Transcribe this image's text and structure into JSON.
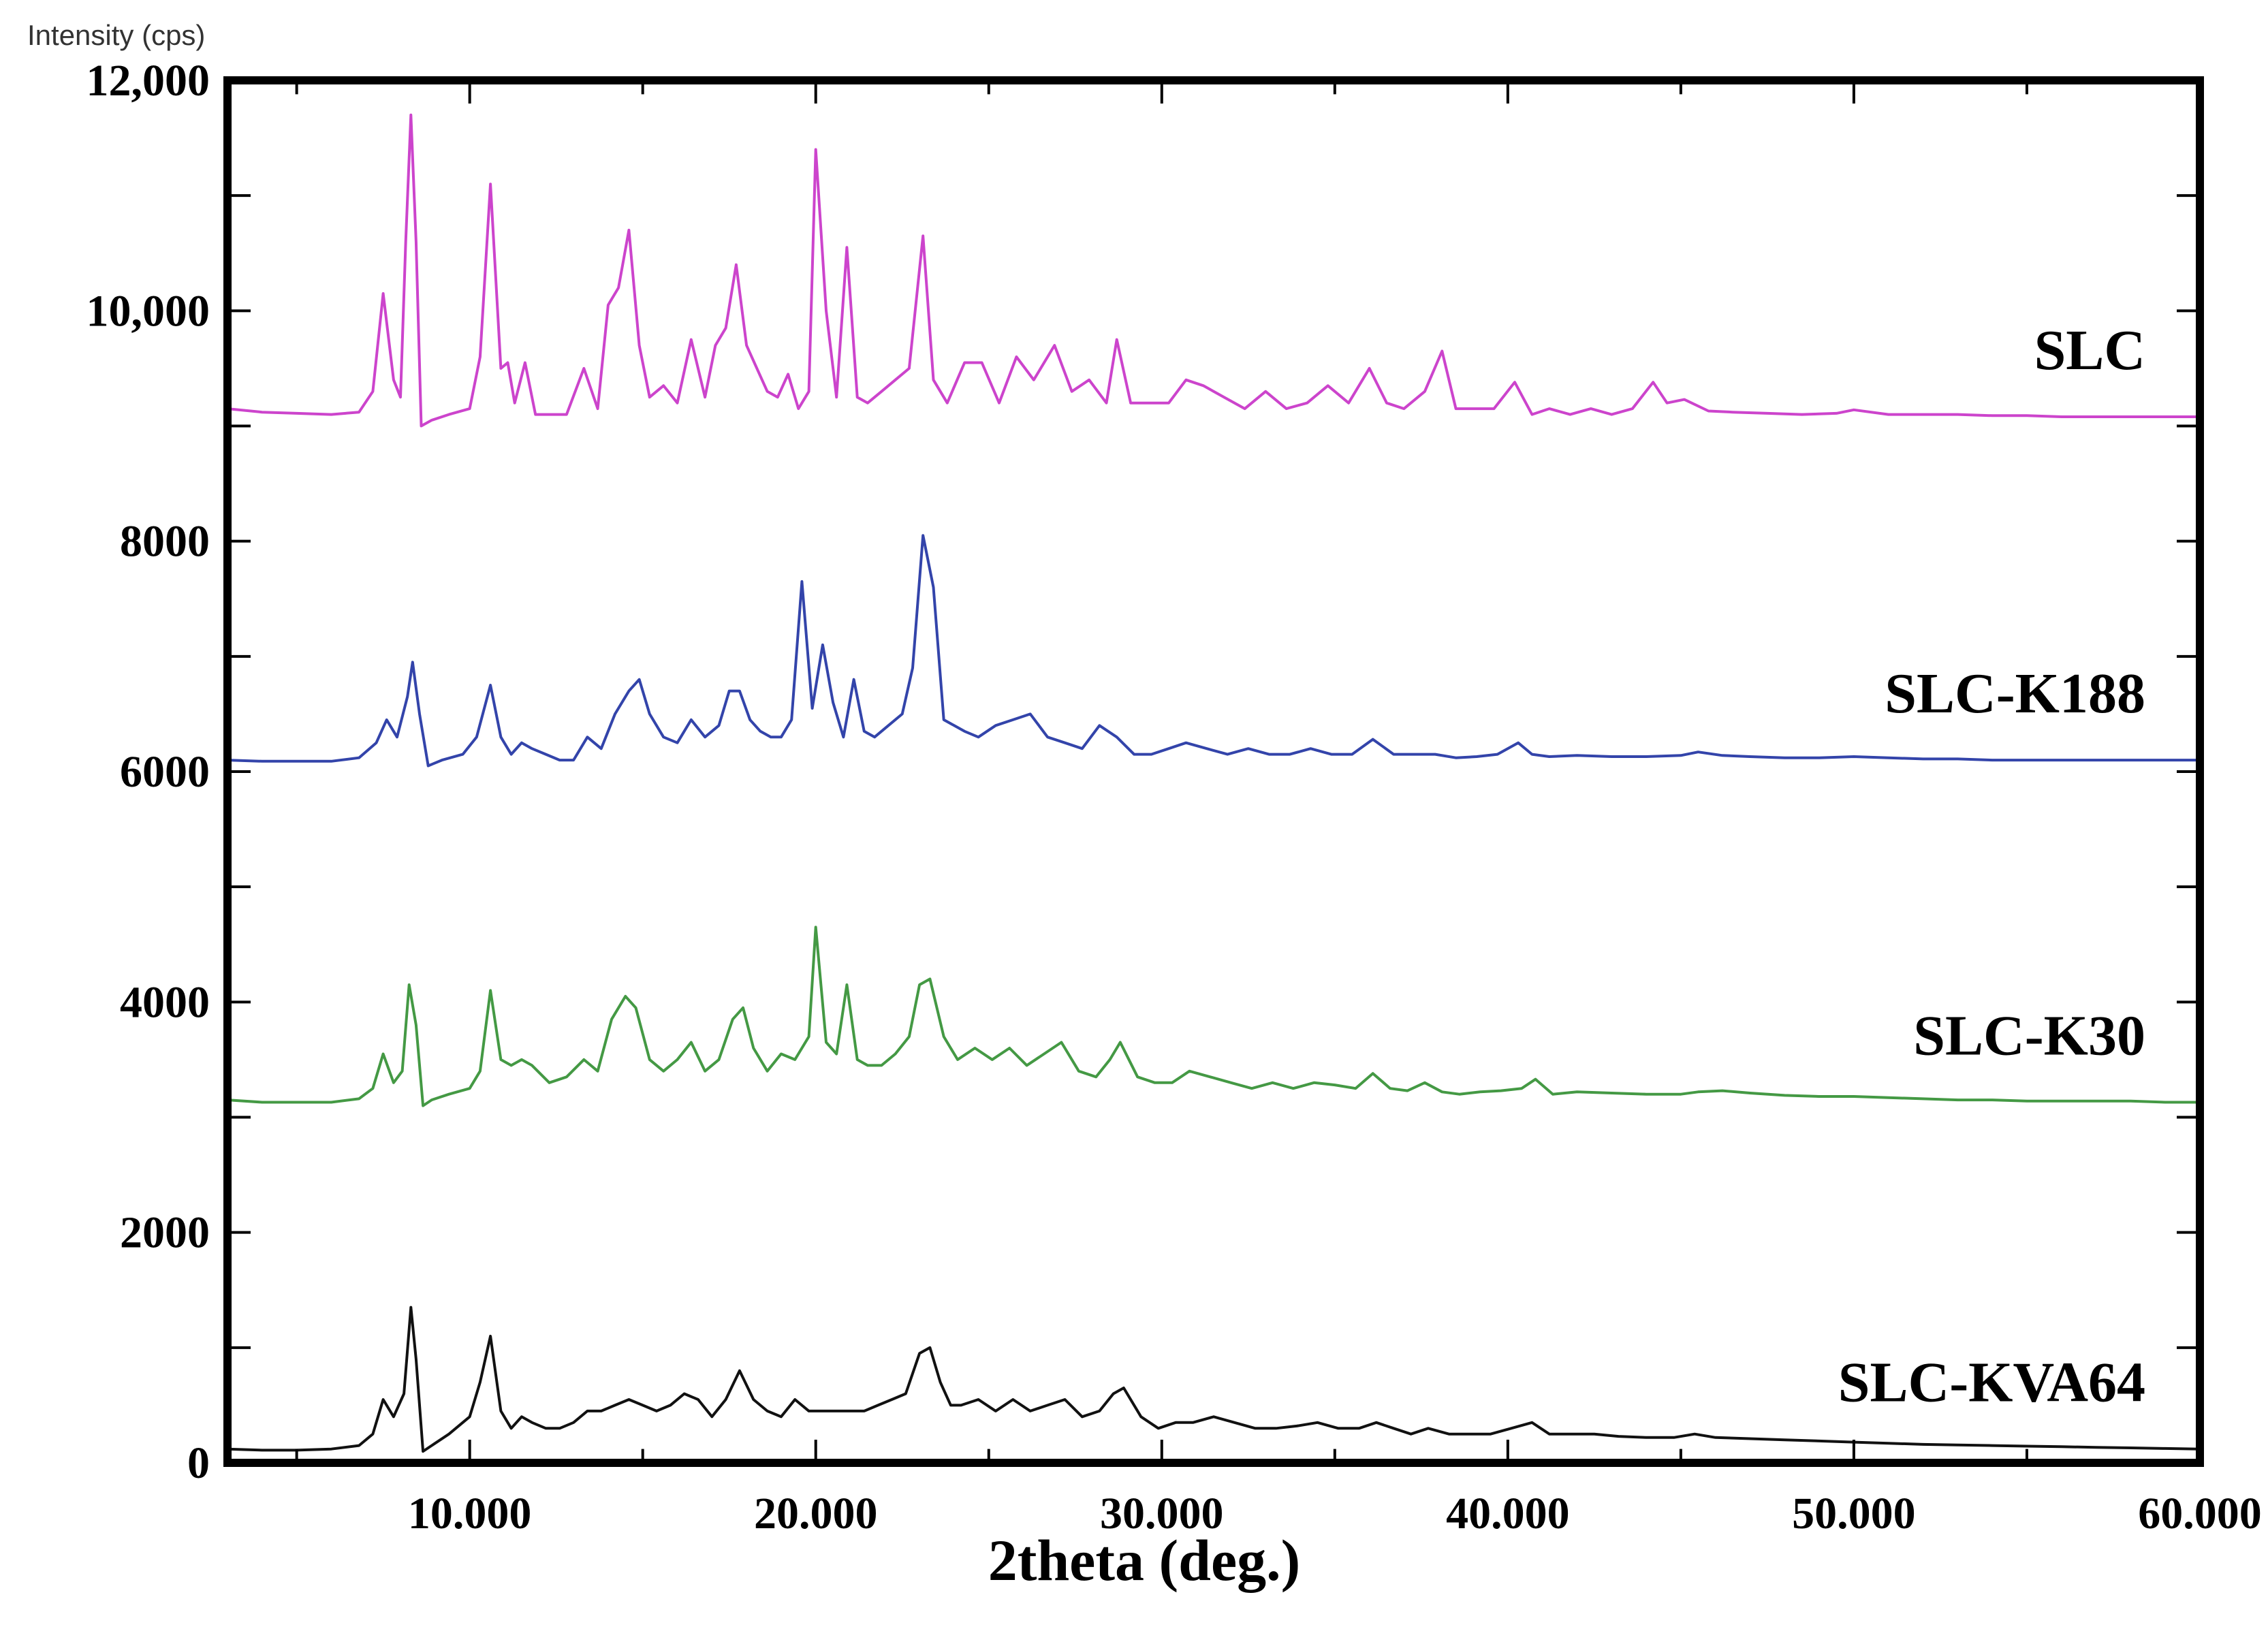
{
  "chart_data": {
    "type": "line",
    "title": "",
    "xlabel": "2theta (deg.)",
    "ylabel": "Intensity (cps)",
    "xlim": [
      3,
      60
    ],
    "ylim": [
      0,
      12000
    ],
    "grid": false,
    "x_ticks": [
      {
        "value": 10,
        "label": "10.000"
      },
      {
        "value": 20,
        "label": "20.000"
      },
      {
        "value": 30,
        "label": "30.000"
      },
      {
        "value": 40,
        "label": "40.000"
      },
      {
        "value": 50,
        "label": "50.000"
      },
      {
        "value": 60,
        "label": "60.000"
      }
    ],
    "y_ticks": [
      {
        "value": 0,
        "label": "0"
      },
      {
        "value": 2000,
        "label": "2000"
      },
      {
        "value": 4000,
        "label": "4000"
      },
      {
        "value": 6000,
        "label": "6000"
      },
      {
        "value": 8000,
        "label": "8000"
      },
      {
        "value": 10000,
        "label": "10,000"
      },
      {
        "value": 12000,
        "label": "12,000"
      }
    ],
    "y_minor_ticks": [
      1000,
      3000,
      5000,
      7000,
      9000,
      11000
    ],
    "series": [
      {
        "name": "SLC",
        "color": "#cc44cc",
        "x": [
          3,
          4,
          5,
          6,
          6.8,
          7.2,
          7.5,
          7.8,
          8.0,
          8.15,
          8.3,
          8.45,
          8.6,
          8.9,
          9.4,
          10.0,
          10.3,
          10.6,
          10.9,
          11.1,
          11.3,
          11.6,
          11.9,
          12.3,
          12.8,
          13.3,
          13.7,
          14.0,
          14.3,
          14.6,
          14.9,
          15.2,
          15.6,
          16.0,
          16.4,
          16.8,
          17.1,
          17.4,
          17.7,
          18.0,
          18.3,
          18.6,
          18.9,
          19.2,
          19.5,
          19.8,
          20.0,
          20.3,
          20.6,
          20.9,
          21.2,
          21.5,
          21.9,
          22.3,
          22.7,
          23.1,
          23.4,
          23.8,
          24.3,
          24.8,
          25.3,
          25.8,
          26.3,
          26.9,
          27.4,
          27.9,
          28.4,
          28.7,
          29.1,
          29.6,
          30.2,
          30.7,
          31.2,
          31.8,
          32.4,
          33.0,
          33.6,
          34.2,
          34.8,
          35.4,
          36.0,
          36.5,
          37.0,
          37.6,
          38.1,
          38.5,
          39.0,
          39.6,
          40.2,
          40.7,
          41.2,
          41.8,
          42.4,
          43.0,
          43.6,
          44.2,
          44.6,
          45.1,
          45.8,
          46.5,
          47.5,
          48.5,
          49.5,
          50.0,
          51,
          52,
          53,
          54,
          55,
          56,
          57,
          58,
          59,
          60
        ],
        "values": [
          9150,
          9120,
          9110,
          9100,
          9120,
          9300,
          10150,
          9400,
          9250,
          10600,
          11700,
          10600,
          9000,
          9050,
          9100,
          9150,
          9600,
          11100,
          9500,
          9550,
          9200,
          9550,
          9100,
          9100,
          9100,
          9500,
          9150,
          10050,
          10200,
          10700,
          9700,
          9250,
          9350,
          9200,
          9750,
          9250,
          9700,
          9850,
          10400,
          9700,
          9500,
          9300,
          9250,
          9450,
          9150,
          9300,
          11400,
          10000,
          9250,
          10550,
          9250,
          9200,
          9300,
          9400,
          9500,
          10650,
          9400,
          9200,
          9550,
          9550,
          9200,
          9600,
          9400,
          9700,
          9300,
          9400,
          9200,
          9750,
          9200,
          9200,
          9200,
          9400,
          9350,
          9250,
          9150,
          9300,
          9150,
          9200,
          9350,
          9200,
          9500,
          9200,
          9150,
          9300,
          9650,
          9150,
          9150,
          9150,
          9380,
          9100,
          9150,
          9100,
          9150,
          9100,
          9150,
          9380,
          9200,
          9230,
          9130,
          9120,
          9110,
          9100,
          9110,
          9140,
          9100,
          9100,
          9100,
          9090,
          9090,
          9080,
          9080,
          9080,
          9080,
          9080
        ]
      },
      {
        "name": "SLC-K188",
        "color": "#3344aa",
        "x": [
          3,
          4,
          5,
          6,
          6.8,
          7.3,
          7.6,
          7.9,
          8.2,
          8.35,
          8.55,
          8.8,
          9.2,
          9.8,
          10.2,
          10.6,
          10.9,
          11.2,
          11.5,
          11.8,
          12.2,
          12.6,
          13.0,
          13.4,
          13.8,
          14.2,
          14.6,
          14.9,
          15.2,
          15.6,
          16.0,
          16.4,
          16.8,
          17.2,
          17.5,
          17.8,
          18.1,
          18.4,
          18.7,
          19.0,
          19.3,
          19.6,
          19.9,
          20.2,
          20.5,
          20.8,
          21.1,
          21.4,
          21.7,
          22.1,
          22.5,
          22.8,
          23.1,
          23.4,
          23.7,
          24.0,
          24.3,
          24.7,
          25.2,
          25.7,
          26.2,
          26.7,
          27.2,
          27.7,
          28.2,
          28.7,
          29.2,
          29.7,
          30.2,
          30.7,
          31.3,
          31.9,
          32.5,
          33.1,
          33.7,
          34.3,
          34.9,
          35.5,
          36.1,
          36.7,
          37.3,
          37.9,
          38.5,
          39.1,
          39.7,
          40.3,
          40.7,
          41.2,
          42,
          43,
          44,
          45,
          45.5,
          46.2,
          47,
          48,
          49,
          50,
          51,
          52,
          53,
          54,
          55,
          56,
          57,
          58,
          59,
          60
        ],
        "values": [
          6100,
          6090,
          6090,
          6090,
          6120,
          6250,
          6450,
          6300,
          6650,
          6950,
          6500,
          6050,
          6100,
          6150,
          6300,
          6750,
          6300,
          6150,
          6250,
          6200,
          6150,
          6100,
          6100,
          6300,
          6200,
          6500,
          6700,
          6800,
          6500,
          6300,
          6250,
          6450,
          6300,
          6400,
          6700,
          6700,
          6450,
          6350,
          6300,
          6300,
          6450,
          7650,
          6550,
          7100,
          6600,
          6300,
          6800,
          6350,
          6300,
          6400,
          6500,
          6900,
          8050,
          7600,
          6450,
          6400,
          6350,
          6300,
          6400,
          6450,
          6500,
          6300,
          6250,
          6200,
          6400,
          6300,
          6150,
          6150,
          6200,
          6250,
          6200,
          6150,
          6200,
          6150,
          6150,
          6200,
          6150,
          6150,
          6280,
          6150,
          6150,
          6150,
          6120,
          6130,
          6150,
          6250,
          6150,
          6130,
          6140,
          6130,
          6130,
          6140,
          6170,
          6140,
          6130,
          6120,
          6120,
          6130,
          6120,
          6110,
          6110,
          6100,
          6100,
          6100,
          6100,
          6100,
          6100,
          6100
        ]
      },
      {
        "name": "SLC-K30",
        "color": "#449944",
        "x": [
          3,
          4,
          5,
          6,
          6.8,
          7.2,
          7.5,
          7.8,
          8.05,
          8.25,
          8.45,
          8.65,
          8.9,
          9.4,
          10.0,
          10.3,
          10.6,
          10.9,
          11.2,
          11.5,
          11.8,
          12.3,
          12.8,
          13.3,
          13.7,
          14.1,
          14.5,
          14.8,
          15.2,
          15.6,
          16.0,
          16.4,
          16.8,
          17.2,
          17.6,
          17.9,
          18.2,
          18.6,
          19.0,
          19.4,
          19.8,
          20.0,
          20.3,
          20.6,
          20.9,
          21.2,
          21.5,
          21.9,
          22.3,
          22.7,
          23.0,
          23.3,
          23.7,
          24.1,
          24.6,
          25.1,
          25.6,
          26.1,
          26.6,
          27.1,
          27.6,
          28.1,
          28.5,
          28.8,
          29.3,
          29.8,
          30.3,
          30.8,
          31.4,
          32.0,
          32.6,
          33.2,
          33.8,
          34.4,
          35.0,
          35.6,
          36.1,
          36.6,
          37.1,
          37.6,
          38.1,
          38.6,
          39.2,
          39.8,
          40.4,
          40.8,
          41.3,
          42,
          43,
          44,
          45,
          45.5,
          46.2,
          47,
          48,
          49,
          50,
          51,
          52,
          53,
          54,
          55,
          56,
          57,
          58,
          59,
          60
        ],
        "values": [
          3150,
          3130,
          3130,
          3130,
          3160,
          3250,
          3550,
          3300,
          3400,
          4150,
          3800,
          3100,
          3150,
          3200,
          3250,
          3400,
          4100,
          3500,
          3450,
          3500,
          3450,
          3300,
          3350,
          3500,
          3400,
          3850,
          4050,
          3950,
          3500,
          3400,
          3500,
          3650,
          3400,
          3500,
          3850,
          3950,
          3600,
          3400,
          3550,
          3500,
          3700,
          4650,
          3650,
          3550,
          4150,
          3500,
          3450,
          3450,
          3550,
          3700,
          4150,
          4200,
          3700,
          3500,
          3600,
          3500,
          3600,
          3450,
          3550,
          3650,
          3400,
          3350,
          3500,
          3650,
          3350,
          3300,
          3300,
          3400,
          3350,
          3300,
          3250,
          3300,
          3250,
          3300,
          3280,
          3250,
          3380,
          3250,
          3230,
          3300,
          3220,
          3200,
          3220,
          3230,
          3250,
          3330,
          3200,
          3220,
          3210,
          3200,
          3200,
          3220,
          3230,
          3210,
          3190,
          3180,
          3180,
          3170,
          3160,
          3150,
          3150,
          3140,
          3140,
          3140,
          3140,
          3130,
          3130
        ]
      },
      {
        "name": "SLC-KVA64",
        "color": "#111111",
        "x": [
          3,
          4,
          5,
          6,
          6.8,
          7.2,
          7.5,
          7.8,
          8.1,
          8.3,
          8.45,
          8.65,
          8.9,
          9.4,
          10.0,
          10.3,
          10.6,
          10.9,
          11.2,
          11.5,
          11.8,
          12.2,
          12.6,
          13.0,
          13.4,
          13.8,
          14.2,
          14.6,
          15.0,
          15.4,
          15.8,
          16.2,
          16.6,
          17.0,
          17.4,
          17.8,
          18.2,
          18.6,
          19.0,
          19.4,
          19.8,
          20.2,
          20.6,
          21.0,
          21.4,
          21.8,
          22.2,
          22.6,
          23.0,
          23.3,
          23.6,
          23.9,
          24.2,
          24.7,
          25.2,
          25.7,
          26.2,
          26.7,
          27.2,
          27.7,
          28.2,
          28.6,
          28.9,
          29.4,
          29.9,
          30.4,
          30.9,
          31.5,
          32.1,
          32.7,
          33.3,
          33.9,
          34.5,
          35.1,
          35.7,
          36.2,
          36.7,
          37.2,
          37.7,
          38.3,
          38.9,
          39.5,
          40.1,
          40.7,
          41.2,
          41.8,
          42.5,
          43.2,
          44,
          44.8,
          45.4,
          46,
          47,
          48,
          49,
          50,
          51,
          52,
          53,
          54,
          55,
          56,
          57,
          58,
          59,
          60
        ],
        "values": [
          120,
          110,
          110,
          120,
          150,
          250,
          550,
          400,
          600,
          1350,
          900,
          100,
          150,
          250,
          400,
          700,
          1100,
          450,
          300,
          400,
          350,
          300,
          300,
          350,
          450,
          450,
          500,
          550,
          500,
          450,
          500,
          600,
          550,
          400,
          550,
          800,
          550,
          450,
          400,
          550,
          450,
          450,
          450,
          450,
          450,
          500,
          550,
          600,
          950,
          1000,
          700,
          500,
          500,
          550,
          450,
          550,
          450,
          500,
          550,
          400,
          450,
          600,
          650,
          400,
          300,
          350,
          350,
          400,
          350,
          300,
          300,
          320,
          350,
          300,
          300,
          350,
          300,
          250,
          300,
          250,
          250,
          250,
          300,
          350,
          250,
          250,
          250,
          230,
          220,
          220,
          250,
          220,
          210,
          200,
          190,
          180,
          170,
          160,
          155,
          150,
          145,
          140,
          135,
          130,
          125,
          120
        ]
      }
    ]
  }
}
